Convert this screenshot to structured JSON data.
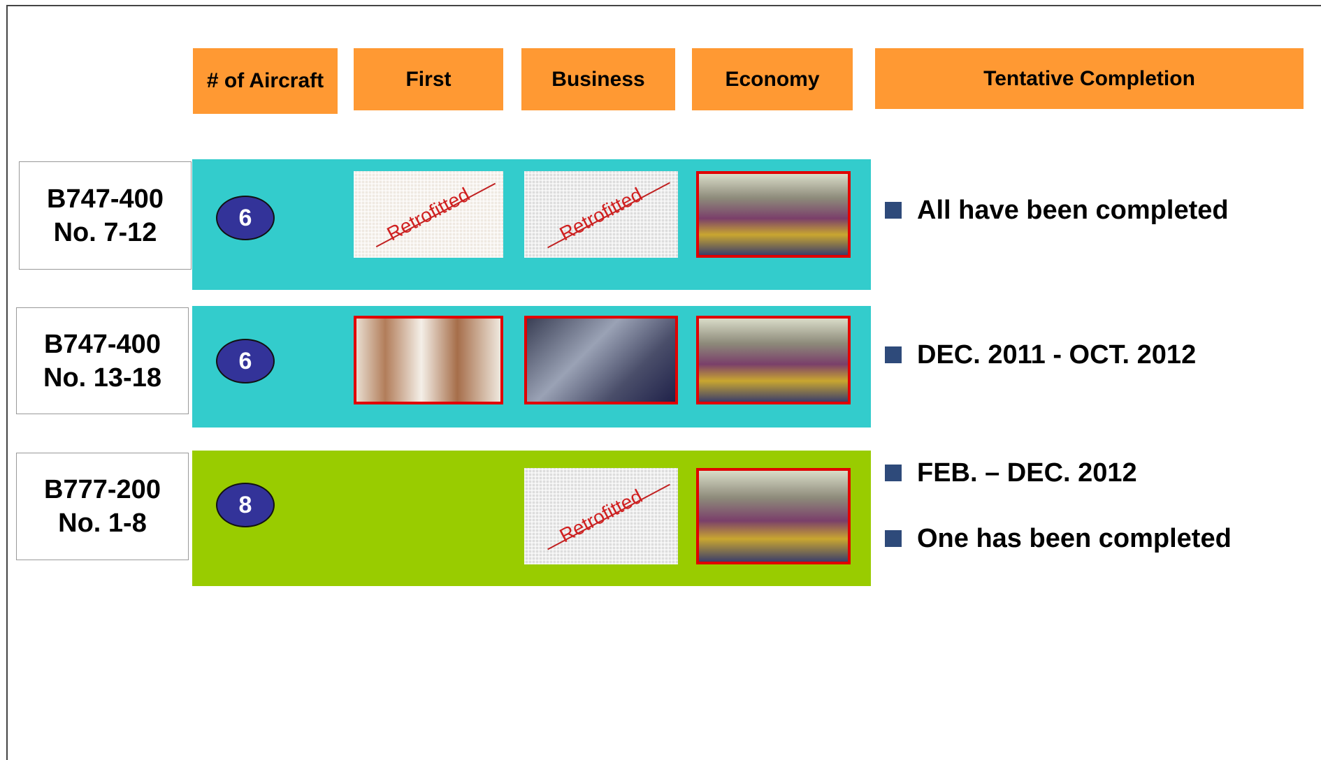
{
  "header": {
    "columns": [
      "# of Aircraft",
      "First",
      "Business",
      "Economy",
      "Tentative Completion"
    ]
  },
  "rows": [
    {
      "aircraft": [
        "B747-400",
        "No. 7-12"
      ],
      "count": 6,
      "stamps": {
        "first": "Retrofitted",
        "business": "Retrofitted"
      },
      "completion": [
        "All have been completed"
      ]
    },
    {
      "aircraft": [
        "B747-400",
        "No. 13-18"
      ],
      "count": 6,
      "completion": [
        "DEC. 2011 - OCT. 2012"
      ]
    },
    {
      "aircraft": [
        "B777-200",
        "No. 1-8"
      ],
      "count": 8,
      "stamps": {
        "business": "Retrofitted"
      },
      "completion": [
        "FEB. – DEC. 2012",
        "One has been completed"
      ]
    }
  ]
}
